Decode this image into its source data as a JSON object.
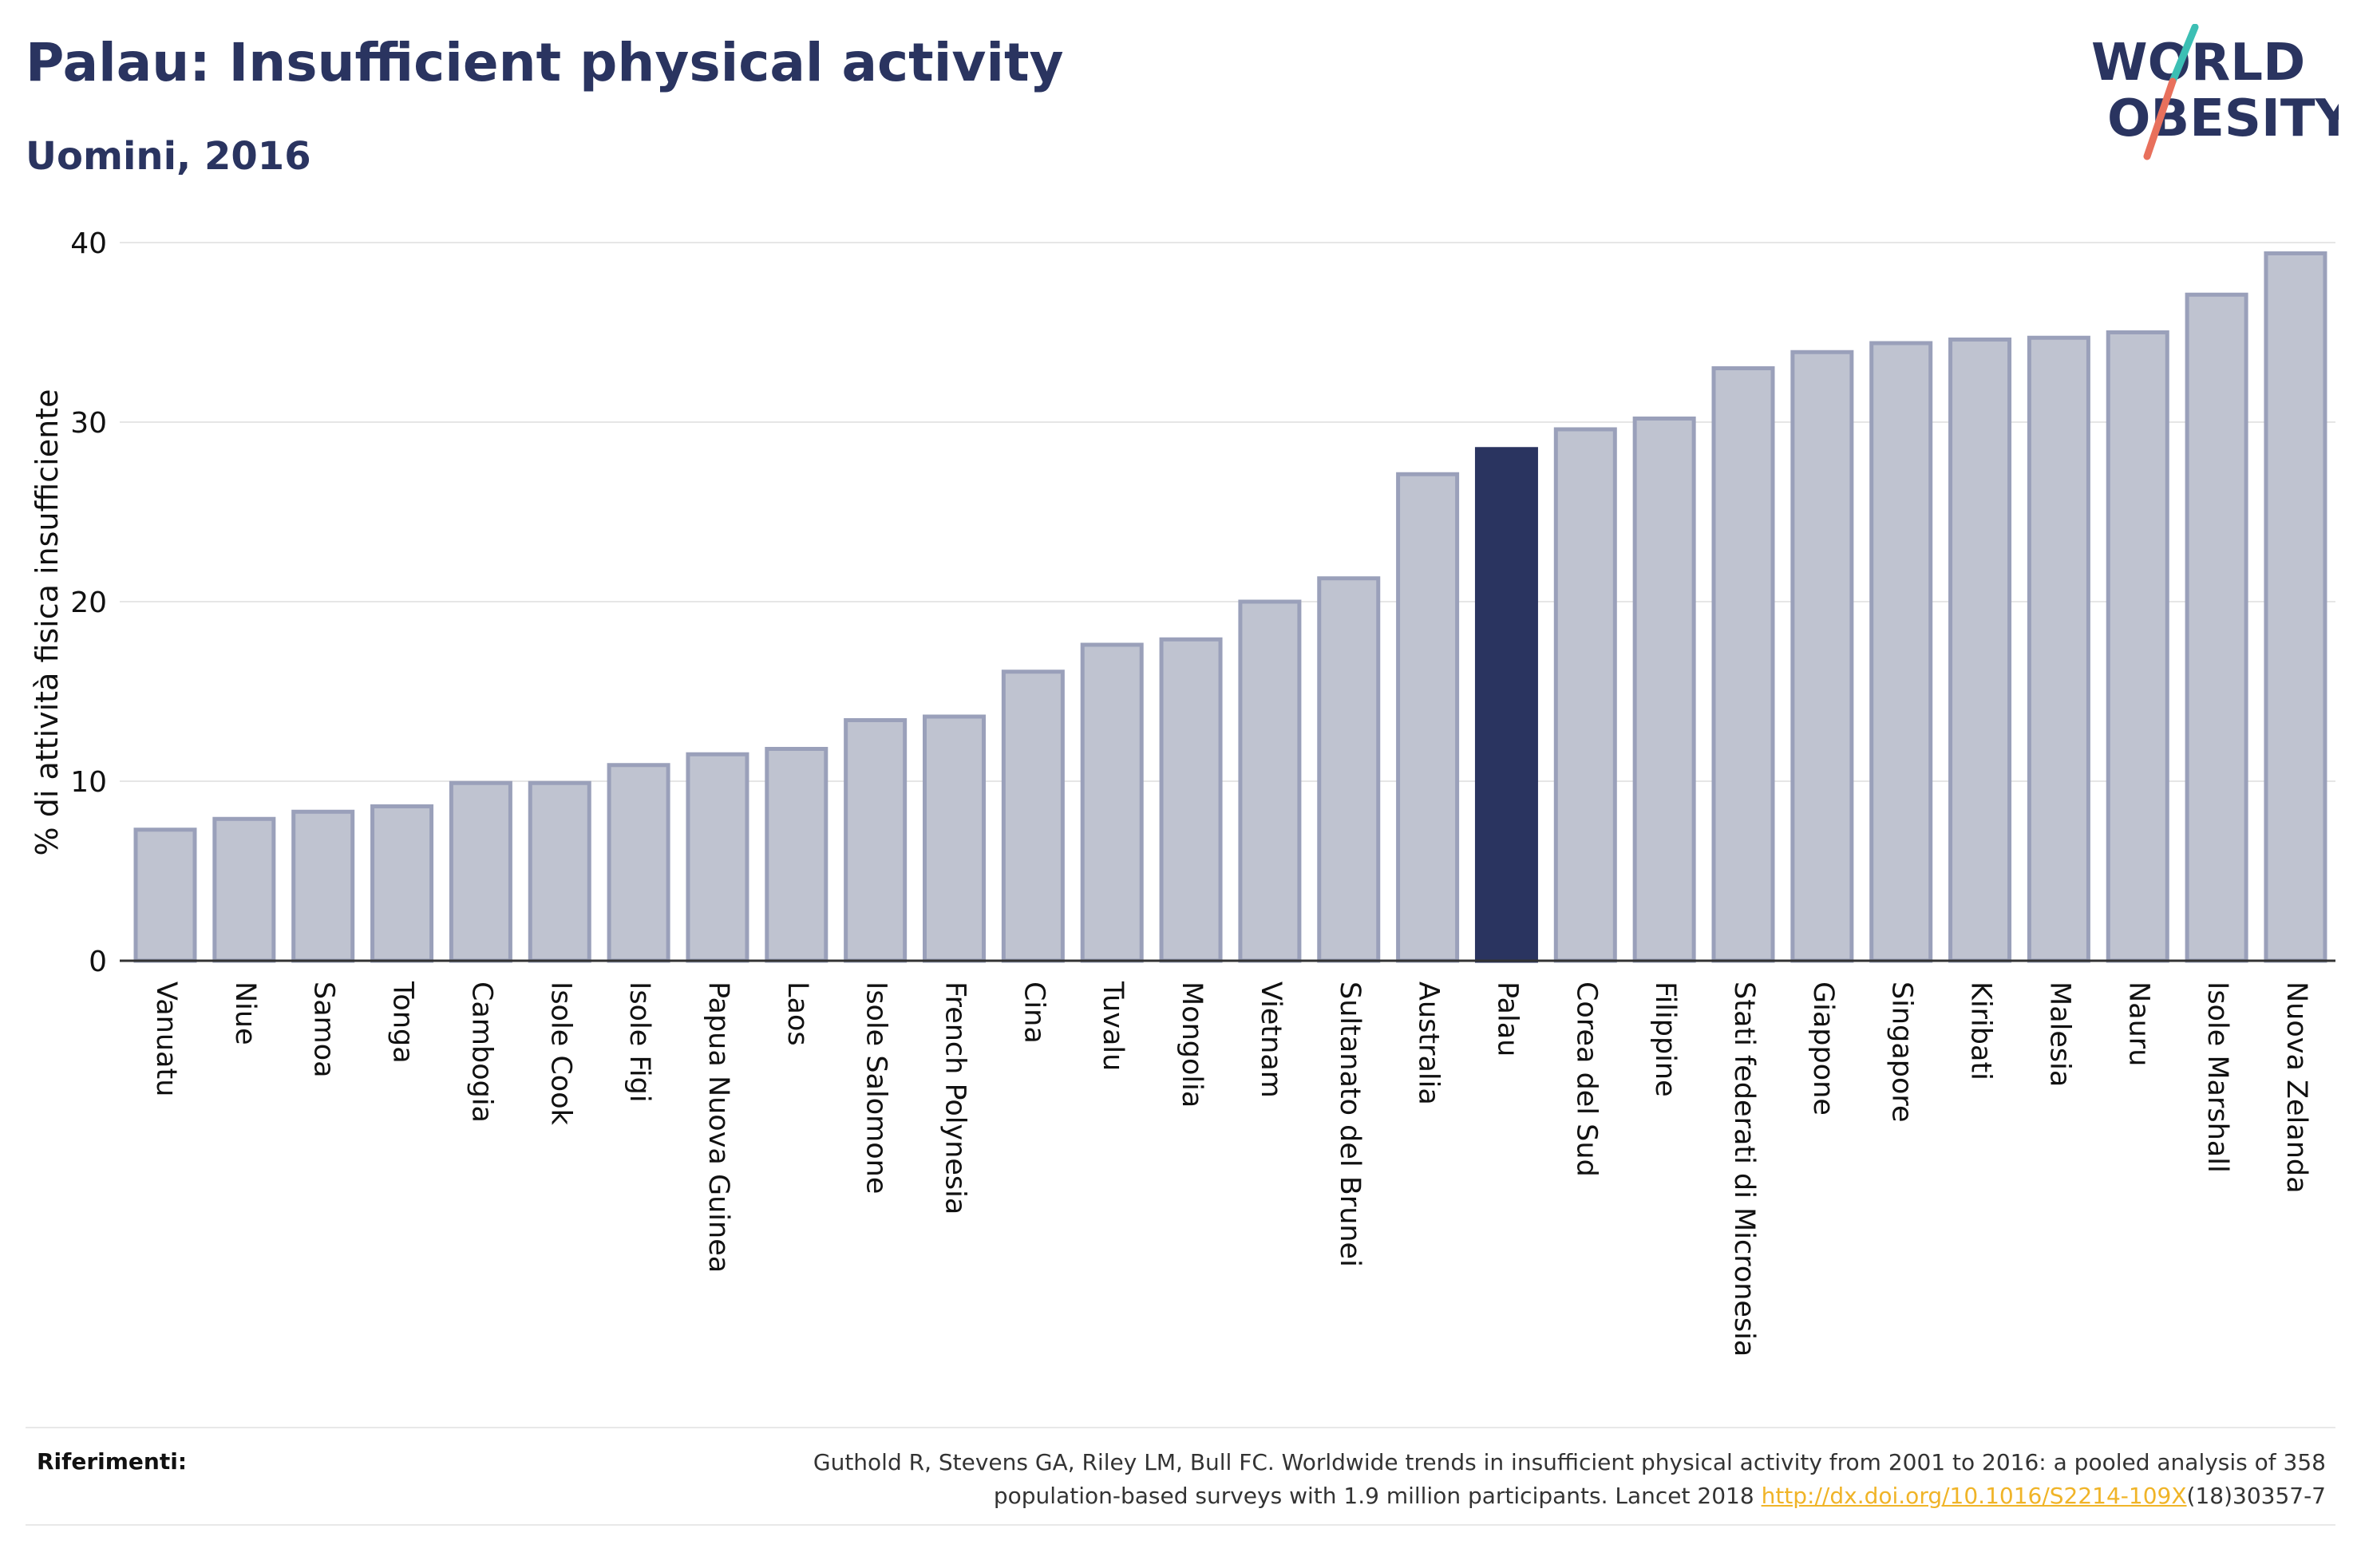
{
  "header": {
    "title": "Palau: Insufficient physical activity",
    "subtitle": "Uomini, 2016"
  },
  "logo": {
    "line1": "WORLD",
    "line2": "OBESITY",
    "text_color": "#2a3460",
    "slash_color_top": "#3cbfb4",
    "slash_color_bottom": "#e8705c"
  },
  "chart_data": {
    "type": "bar",
    "ylabel": "% di attività fisica insufficiente",
    "ylim": [
      0,
      40
    ],
    "yticks": [
      0,
      10,
      20,
      30,
      40
    ],
    "grid": true,
    "highlight": "Palau",
    "bar_color": "#bfc3d0",
    "bar_border_color": "#9aa0ba",
    "highlight_color": "#2a3460",
    "categories": [
      "Vanuatu",
      "Niue",
      "Samoa",
      "Tonga",
      "Cambogia",
      "Isole Cook",
      "Isole Figi",
      "Papua Nuova Guinea",
      "Laos",
      "Isole Salomone",
      "French Polynesia",
      "Cina",
      "Tuvalu",
      "Mongolia",
      "Vietnam",
      "Sultanato del Brunei",
      "Australia",
      "Palau",
      "Corea del Sud",
      "Filippine",
      "Stati federati di Micronesia",
      "Giappone",
      "Singapore",
      "Kiribati",
      "Malesia",
      "Nauru",
      "Isole Marshall",
      "Nuova Zelanda"
    ],
    "values": [
      7.3,
      7.9,
      8.3,
      8.6,
      9.9,
      9.9,
      10.9,
      11.5,
      11.8,
      13.4,
      13.6,
      16.1,
      17.6,
      17.9,
      20.0,
      21.3,
      27.1,
      28.5,
      29.6,
      30.2,
      33.0,
      33.9,
      34.4,
      34.6,
      34.7,
      35.0,
      37.1,
      39.4
    ]
  },
  "references": {
    "label": "Riferimenti:",
    "line1": "Guthold R, Stevens GA, Riley LM, Bull FC. Worldwide trends in insufficient physical activity from 2001 to 2016: a pooled analysis of 358",
    "line2_before": "population-based surveys with 1.9 million participants. Lancet 2018 ",
    "link": "http://dx.doi.org/10.1016/S2214-109X",
    "line2_after": "(18)30357-7"
  }
}
